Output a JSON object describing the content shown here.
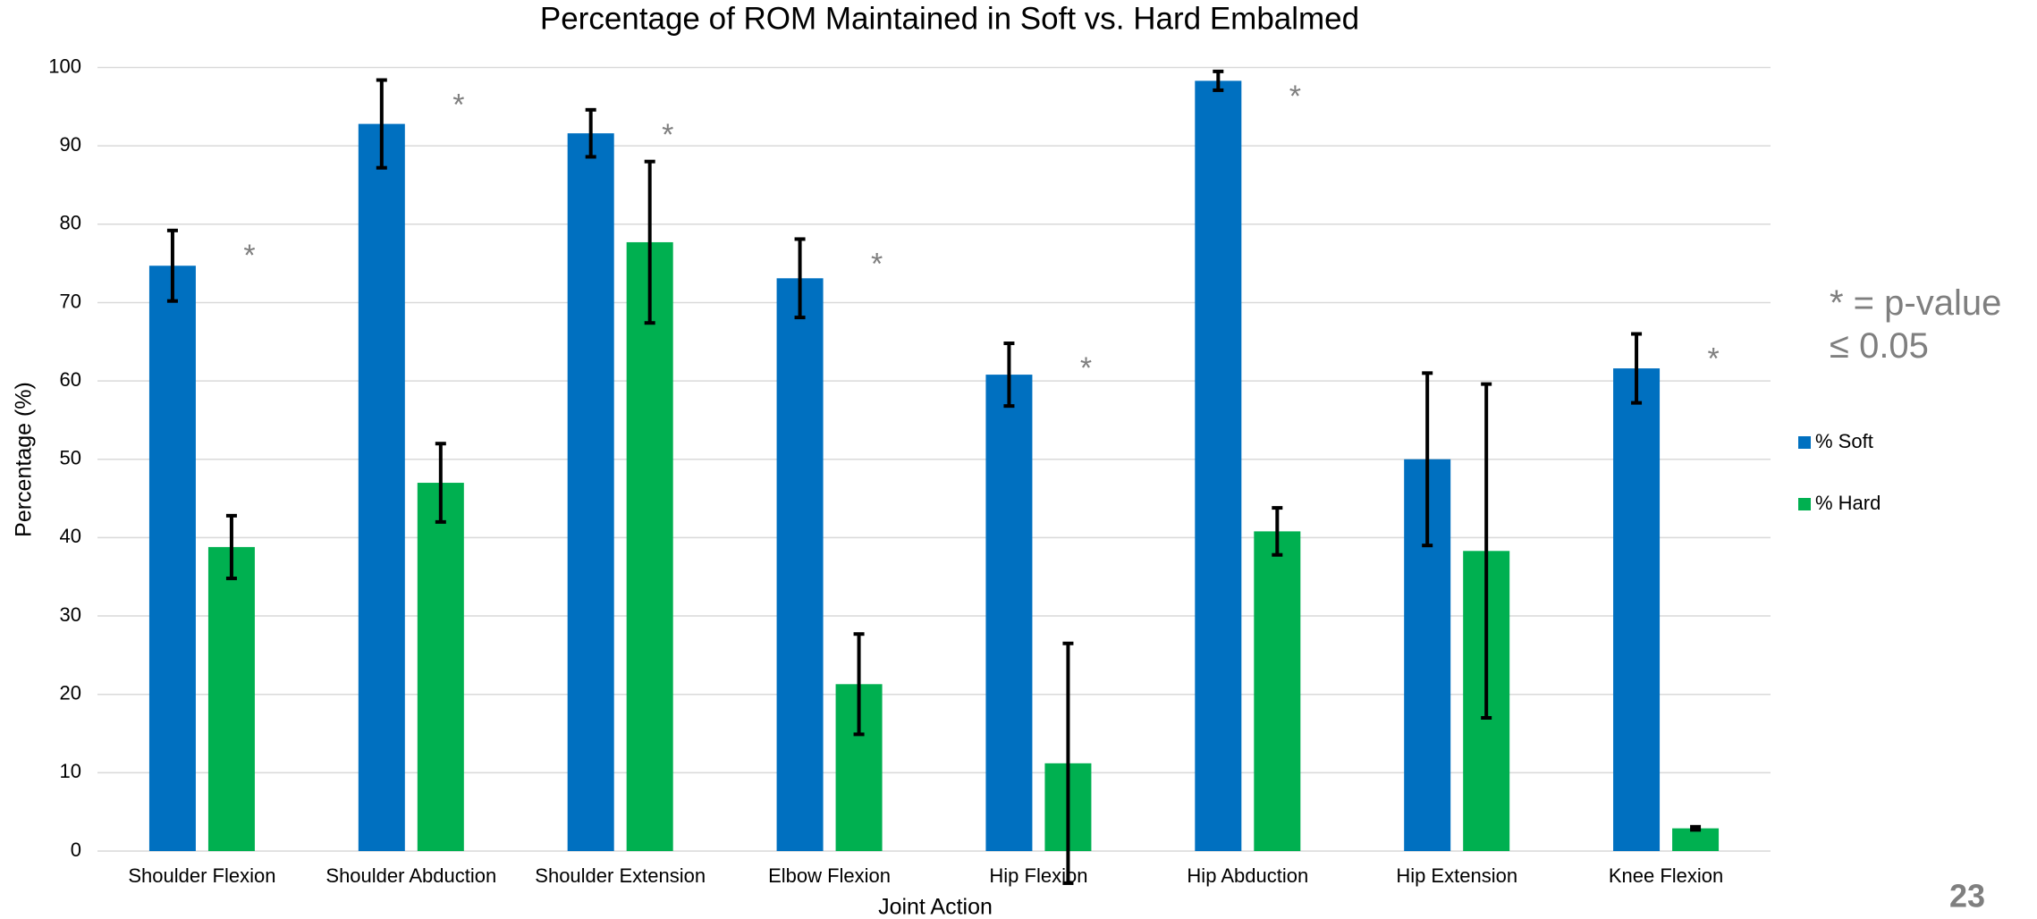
{
  "chart_data": {
    "type": "bar",
    "title": "Percentage of ROM Maintained in Soft vs. Hard Embalmed",
    "x_label": "Joint Action",
    "y_label": "Percentage (%)",
    "categories": [
      "Shoulder Flexion",
      "Shoulder Abduction",
      "Shoulder Extension",
      "Elbow Flexion",
      "Hip Flexion",
      "Hip Abduction",
      "Hip Extension",
      "Knee Flexion"
    ],
    "series": [
      {
        "name": "% Soft",
        "color": "#0070c0",
        "values": [
          74.7,
          92.8,
          91.6,
          73.1,
          60.8,
          98.3,
          50,
          61.6
        ],
        "errors": [
          4.5,
          5.6,
          3,
          5,
          4,
          1.2,
          11,
          4.4
        ]
      },
      {
        "name": "% Hard",
        "color": "#00b050",
        "values": [
          38.8,
          47,
          77.7,
          21.3,
          11.2,
          40.8,
          38.3,
          2.9
        ],
        "errors": [
          4,
          5,
          10.3,
          6.4,
          15.3,
          3,
          21.3,
          0.2
        ]
      }
    ],
    "significance": [
      "*",
      "*",
      "*",
      "*",
      "*",
      "*",
      null,
      "*"
    ],
    "note": "* = p-value ≤ 0.05",
    "page_number": "23",
    "ylim": [
      0,
      100
    ],
    "yticks": [
      0,
      10,
      20,
      30,
      40,
      50,
      60,
      70,
      80,
      90,
      100
    ],
    "grid": true,
    "legend": "right"
  }
}
